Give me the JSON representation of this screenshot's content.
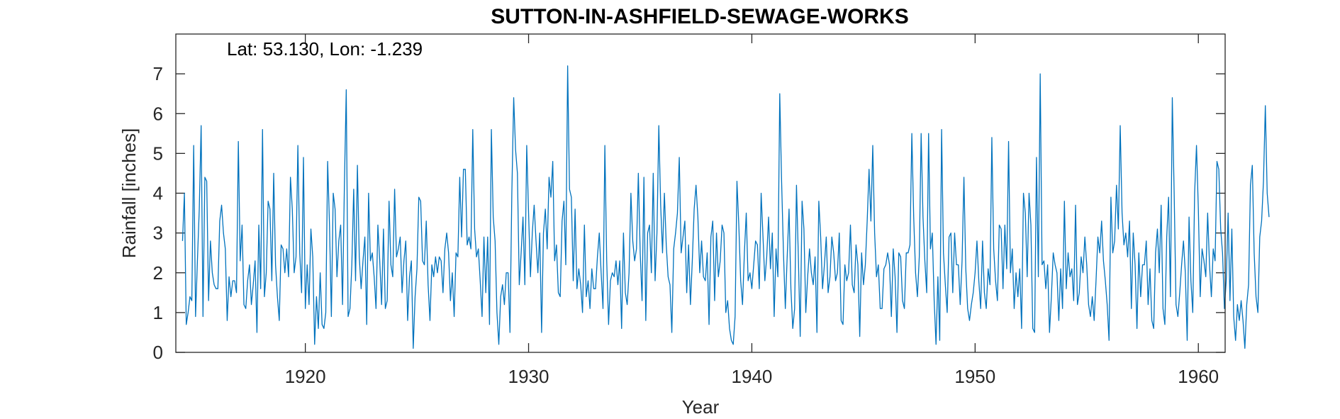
{
  "chart_data": {
    "type": "line",
    "title": "SUTTON-IN-ASHFIELD-SEWAGE-WORKS",
    "annotation": "Lat: 53.130, Lon: -1.239",
    "xlabel": "Year",
    "ylabel": "Rainfall [inches]",
    "xlim": [
      1914.2,
      1961.2
    ],
    "ylim": [
      0,
      8
    ],
    "xticks": [
      1920,
      1930,
      1940,
      1950,
      1960
    ],
    "yticks": [
      0,
      1,
      2,
      3,
      4,
      5,
      6,
      7
    ],
    "grid": false,
    "line_color": "#0072BD",
    "series": [
      {
        "x_start": 1914.5,
        "x_step": 0.0833333,
        "values": [
          2.8,
          4.0,
          0.7,
          1.0,
          1.4,
          1.3,
          5.2,
          0.9,
          2.3,
          3.6,
          5.7,
          0.9,
          4.4,
          4.3,
          1.3,
          2.8,
          2.0,
          1.7,
          1.6,
          1.6,
          3.3,
          3.7,
          3.0,
          2.6,
          0.8,
          1.9,
          1.4,
          1.8,
          1.8,
          1.5,
          5.3,
          2.3,
          3.2,
          1.2,
          1.1,
          1.8,
          2.2,
          1.2,
          1.7,
          2.3,
          0.5,
          3.2,
          1.6,
          5.6,
          1.4,
          2.0,
          3.8,
          3.6,
          1.8,
          4.5,
          2.2,
          1.4,
          0.8,
          2.7,
          2.6,
          2.0,
          2.6,
          1.9,
          4.4,
          3.6,
          2.0,
          2.4,
          5.2,
          2.5,
          1.5,
          4.9,
          1.1,
          2.2,
          1.2,
          3.1,
          2.4,
          0.2,
          1.4,
          0.6,
          2.0,
          0.7,
          0.6,
          1.0,
          4.8,
          3.2,
          0.9,
          4.0,
          3.6,
          1.9,
          2.8,
          3.2,
          1.2,
          4.2,
          6.6,
          0.9,
          1.1,
          2.2,
          4.1,
          1.8,
          4.7,
          2.4,
          1.6,
          2.3,
          2.9,
          0.7,
          4.0,
          2.3,
          2.5,
          1.9,
          1.1,
          3.2,
          2.3,
          1.2,
          3.1,
          1.1,
          1.3,
          3.8,
          2.2,
          1.9,
          4.1,
          2.4,
          2.6,
          2.9,
          1.5,
          2.3,
          2.8,
          0.8,
          1.9,
          2.3,
          0.1,
          1.4,
          2.1,
          3.9,
          3.8,
          2.3,
          2.2,
          3.3,
          1.7,
          0.8,
          2.2,
          1.9,
          2.4,
          2.0,
          2.4,
          2.3,
          1.5,
          2.6,
          3.0,
          2.5,
          1.3,
          2.0,
          0.9,
          2.5,
          2.4,
          4.4,
          2.9,
          4.6,
          4.6,
          2.7,
          2.9,
          2.6,
          5.6,
          3.1,
          2.4,
          2.6,
          1.8,
          0.9,
          2.9,
          1.5,
          2.9,
          0.7,
          5.6,
          3.4,
          2.8,
          1.0,
          0.2,
          1.4,
          1.7,
          1.2,
          2.0,
          2.0,
          0.5,
          4.0,
          6.4,
          5.1,
          4.5,
          1.7,
          2.5,
          3.4,
          1.7,
          5.2,
          3.5,
          1.9,
          3.0,
          3.7,
          2.8,
          2.0,
          3.0,
          0.5,
          3.0,
          3.6,
          2.6,
          4.4,
          3.9,
          4.8,
          2.3,
          2.7,
          1.5,
          1.4,
          3.3,
          3.8,
          2.2,
          7.2,
          4.1,
          3.9,
          1.8,
          3.6,
          1.6,
          2.1,
          1.7,
          1.0,
          3.2,
          1.4,
          1.8,
          1.1,
          2.1,
          1.6,
          1.6,
          2.4,
          3.0,
          2.0,
          1.1,
          5.2,
          2.3,
          0.7,
          1.8,
          2.0,
          1.9,
          2.3,
          1.7,
          2.3,
          0.6,
          3.0,
          1.5,
          1.2,
          2.0,
          4.0,
          2.8,
          2.3,
          2.6,
          4.5,
          2.5,
          1.3,
          4.4,
          0.8,
          3.0,
          3.2,
          2.0,
          4.5,
          1.8,
          3.0,
          5.7,
          3.7,
          2.5,
          4.0,
          2.7,
          1.9,
          1.7,
          0.5,
          2.6,
          3.0,
          3.5,
          4.9,
          2.5,
          2.9,
          3.3,
          1.5,
          2.7,
          1.2,
          2.3,
          3.6,
          4.2,
          3.4,
          2.0,
          2.8,
          1.9,
          1.8,
          2.5,
          0.7,
          2.9,
          3.3,
          1.3,
          3.0,
          1.9,
          2.3,
          3.2,
          3.0,
          1.0,
          1.3,
          0.6,
          0.3,
          0.2,
          0.9,
          4.3,
          3.2,
          1.8,
          1.2,
          2.5,
          3.5,
          1.8,
          2.0,
          1.6,
          2.2,
          2.8,
          2.7,
          1.6,
          4.0,
          2.9,
          1.8,
          2.4,
          3.4,
          2.1,
          3.0,
          0.9,
          2.6,
          1.9,
          6.5,
          4.3,
          2.5,
          1.1,
          2.4,
          3.6,
          1.6,
          0.6,
          1.1,
          4.2,
          2.4,
          0.4,
          3.8,
          3.1,
          1.0,
          1.9,
          2.6,
          2.0,
          1.7,
          2.4,
          0.5,
          3.8,
          2.9,
          1.6,
          2.2,
          2.9,
          1.5,
          1.9,
          2.9,
          2.5,
          1.8,
          2.0,
          3.0,
          0.8,
          0.7,
          2.2,
          1.8,
          2.0,
          3.2,
          1.7,
          1.5,
          2.7,
          2.2,
          0.4,
          2.5,
          1.7,
          2.2,
          3.3,
          4.6,
          3.3,
          5.2,
          3.0,
          1.9,
          2.2,
          1.1,
          1.1,
          2.1,
          2.2,
          2.5,
          2.2,
          0.9,
          2.6,
          1.9,
          0.5,
          2.5,
          2.4,
          1.3,
          1.1,
          2.5,
          2.5,
          2.7,
          5.5,
          3.4,
          2.0,
          1.4,
          2.4,
          5.5,
          3.4,
          2.3,
          1.5,
          5.5,
          2.6,
          3.0,
          1.3,
          0.2,
          1.9,
          0.3,
          5.6,
          2.5,
          1.7,
          1.0,
          2.9,
          3.0,
          1.5,
          3.0,
          2.2,
          2.2,
          1.2,
          2.3,
          4.4,
          2.1,
          1.1,
          0.8,
          1.2,
          1.5,
          2.0,
          2.8,
          1.8,
          1.1,
          2.8,
          1.5,
          1.1,
          2.1,
          1.7,
          5.4,
          2.6,
          1.8,
          1.3,
          3.2,
          3.1,
          1.6,
          3.2,
          2.1,
          5.3,
          2.0,
          2.6,
          1.1,
          2.0,
          1.4,
          2.1,
          0.6,
          4.0,
          3.5,
          1.9,
          4.0,
          3.2,
          0.6,
          0.5,
          4.9,
          1.9,
          7.0,
          2.2,
          2.3,
          1.6,
          2.2,
          0.5,
          1.4,
          2.5,
          2.2,
          2.0,
          0.8,
          2.1,
          1.1,
          3.8,
          1.6,
          2.5,
          1.9,
          2.1,
          1.3,
          3.7,
          1.2,
          1.5,
          2.4,
          2.0,
          2.9,
          2.2,
          1.2,
          0.9,
          1.4,
          0.8,
          1.8,
          2.9,
          2.5,
          3.3,
          2.3,
          1.8,
          1.2,
          0.3,
          3.9,
          2.5,
          2.8,
          4.2,
          3.1,
          5.7,
          3.5,
          2.7,
          3.0,
          2.4,
          3.3,
          1.1,
          3.0,
          2.2,
          0.6,
          2.5,
          1.4,
          2.2,
          2.2,
          2.8,
          1.2,
          2.1,
          0.8,
          0.6,
          2.5,
          3.1,
          2.0,
          3.7,
          1.1,
          0.7,
          2.9,
          3.9,
          1.4,
          6.4,
          4.0,
          1.2,
          0.9,
          1.5,
          2.2,
          2.8,
          2.0,
          0.3,
          3.4,
          1.8,
          1.0,
          4.0,
          5.2,
          3.6,
          1.4,
          2.6,
          2.3,
          1.9,
          3.5,
          2.2,
          1.4,
          2.6,
          2.3,
          4.8,
          4.6,
          3.1,
          2.5,
          1.1,
          1.8,
          3.5,
          1.3,
          3.1,
          0.9,
          0.3,
          1.2,
          0.8,
          1.3,
          0.8,
          0.1,
          1.2,
          1.7,
          4.2,
          4.7,
          2.5,
          1.4,
          1.0,
          2.9,
          3.3,
          4.3,
          6.2,
          4.0,
          3.4
        ]
      }
    ]
  }
}
